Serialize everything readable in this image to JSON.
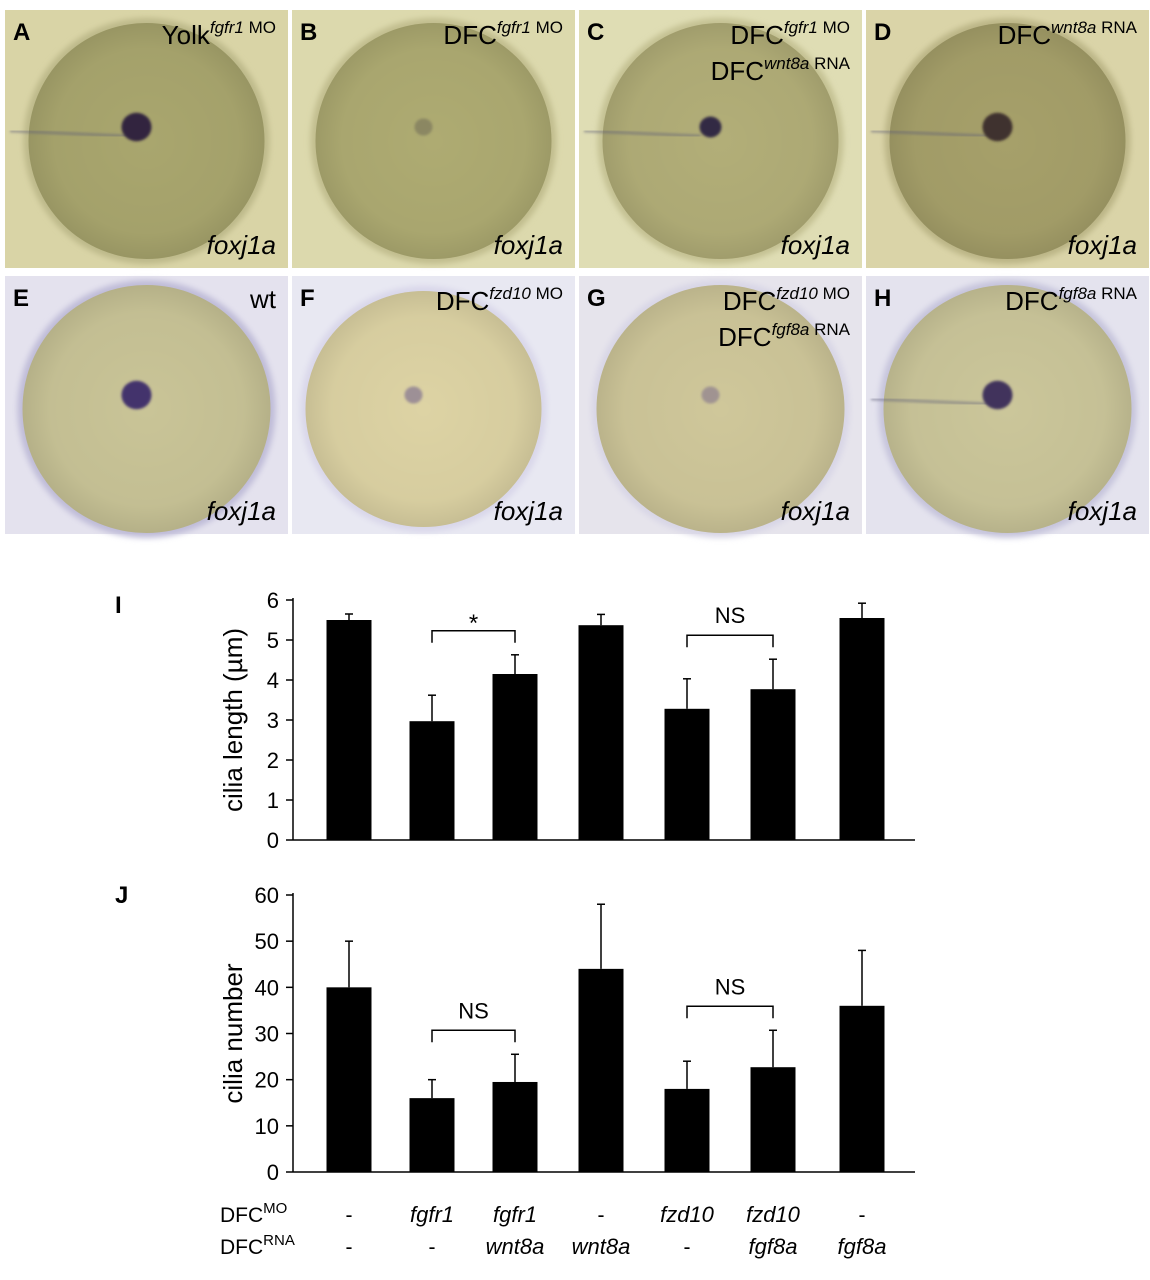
{
  "panels": [
    {
      "letter": "A",
      "base": "Yolk",
      "sup_italic": "fgfr1",
      "sup_rest": " MO",
      "base2": "",
      "sup2_italic": "",
      "sup2_rest": "",
      "gene": "foxj1a",
      "bg": "#d9d4a6",
      "embryo": "#a9a66e",
      "rim": "#bdb98a",
      "spot": "#2a1f3c",
      "spot_size": "large",
      "injection": true
    },
    {
      "letter": "B",
      "base": "DFC",
      "sup_italic": "fgfr1",
      "sup_rest": " MO",
      "base2": "",
      "sup2_italic": "",
      "sup2_rest": "",
      "gene": "foxj1a",
      "bg": "#dcd9ad",
      "embryo": "#aeab72",
      "rim": "#c1bd8e",
      "spot": "#6e6a55",
      "spot_size": "faint",
      "injection": false
    },
    {
      "letter": "C",
      "base": "DFC",
      "sup_italic": "fgfr1",
      "sup_rest": " MO",
      "base2": "DFC",
      "sup2_italic": "wnt8a",
      "sup2_rest": " RNA",
      "gene": "foxj1a",
      "bg": "#dfddb4",
      "embryo": "#b2ae78",
      "rim": "#c4c193",
      "spot": "#2d2540",
      "spot_size": "medium",
      "injection": true
    },
    {
      "letter": "D",
      "base": "DFC",
      "sup_italic": "wnt8a",
      "sup_rest": " RNA",
      "base2": "",
      "sup2_italic": "",
      "sup2_rest": "",
      "gene": "foxj1a",
      "bg": "#dad4a8",
      "embryo": "#a6a06a",
      "rim": "#bbb586",
      "spot": "#3a2a2a",
      "spot_size": "large",
      "injection": true
    },
    {
      "letter": "E",
      "base": "",
      "sup_italic": "",
      "sup_rest": "",
      "base2": "",
      "sup2_italic": "",
      "sup2_rest": "",
      "wt": "wt",
      "gene": "foxj1a",
      "bg": "#e4e2ee",
      "embryo": "#c9c497",
      "rim": "#bfbcd8",
      "spot": "#3b2a6a",
      "spot_size": "large",
      "injection": false
    },
    {
      "letter": "F",
      "base": "DFC",
      "sup_italic": "fzd10",
      "sup_rest": " MO",
      "base2": "",
      "sup2_italic": "",
      "sup2_rest": "",
      "gene": "foxj1a",
      "bg": "#e8e8f2",
      "embryo": "#ddd3a4",
      "rim": "#d9d7ea",
      "spot": "#6a5a8a",
      "spot_size": "faint",
      "injection": false
    },
    {
      "letter": "G",
      "base": "DFC",
      "sup_italic": "fzd10",
      "sup_rest": " MO",
      "base2": "DFC",
      "sup2_italic": "fgf8a",
      "sup2_rest": " RNA",
      "gene": "foxj1a",
      "bg": "#e6e4ec",
      "embryo": "#cfc79a",
      "rim": "#d8d6e6",
      "spot": "#7a6a8a",
      "spot_size": "faint",
      "injection": false
    },
    {
      "letter": "H",
      "base": "DFC",
      "sup_italic": "fgf8a",
      "sup_rest": " RNA",
      "base2": "",
      "sup2_italic": "",
      "sup2_rest": "",
      "gene": "foxj1a",
      "bg": "#e4e3ee",
      "embryo": "#cbc69a",
      "rim": "#c6c4dc",
      "spot": "#3a2a5a",
      "spot_size": "large",
      "injection": true
    }
  ],
  "chart_data": [
    {
      "type": "bar",
      "panel": "I",
      "ylabel": "cilia length (µm)",
      "ylim": [
        0,
        6
      ],
      "yticks": [
        "0",
        "1",
        "2",
        "3",
        "4",
        "5",
        "6"
      ],
      "values": [
        5.5,
        2.97,
        4.15,
        5.37,
        3.28,
        3.77,
        5.55
      ],
      "errors": [
        0.15,
        0.65,
        0.48,
        0.27,
        0.75,
        0.75,
        0.37
      ],
      "brackets": [
        {
          "from": 1,
          "to": 2,
          "label": "*"
        },
        {
          "from": 4,
          "to": 5,
          "label": "NS"
        }
      ]
    },
    {
      "type": "bar",
      "panel": "J",
      "ylabel": "cilia number",
      "ylim": [
        0,
        60
      ],
      "yticks": [
        "0",
        "10",
        "20",
        "30",
        "40",
        "50",
        "60"
      ],
      "values": [
        40,
        16,
        19.5,
        44,
        18,
        22.7,
        36
      ],
      "errors": [
        10,
        4,
        6,
        14,
        6,
        8,
        12
      ],
      "brackets": [
        {
          "from": 1,
          "to": 2,
          "label": "NS"
        },
        {
          "from": 4,
          "to": 5,
          "label": "NS"
        }
      ]
    }
  ],
  "conditions": {
    "mo_base": "DFC",
    "mo_sup": "MO",
    "rna_base": "DFC",
    "rna_sup": "RNA",
    "mo": [
      "-",
      "fgfr1",
      "fgfr1",
      "-",
      "fzd10",
      "fzd10",
      "-"
    ],
    "rna": [
      "-",
      "-",
      "wnt8a",
      "wnt8a",
      "-",
      "fgf8a",
      "fgf8a"
    ]
  },
  "colors": {
    "bar": "#000000",
    "axis": "#000000"
  }
}
